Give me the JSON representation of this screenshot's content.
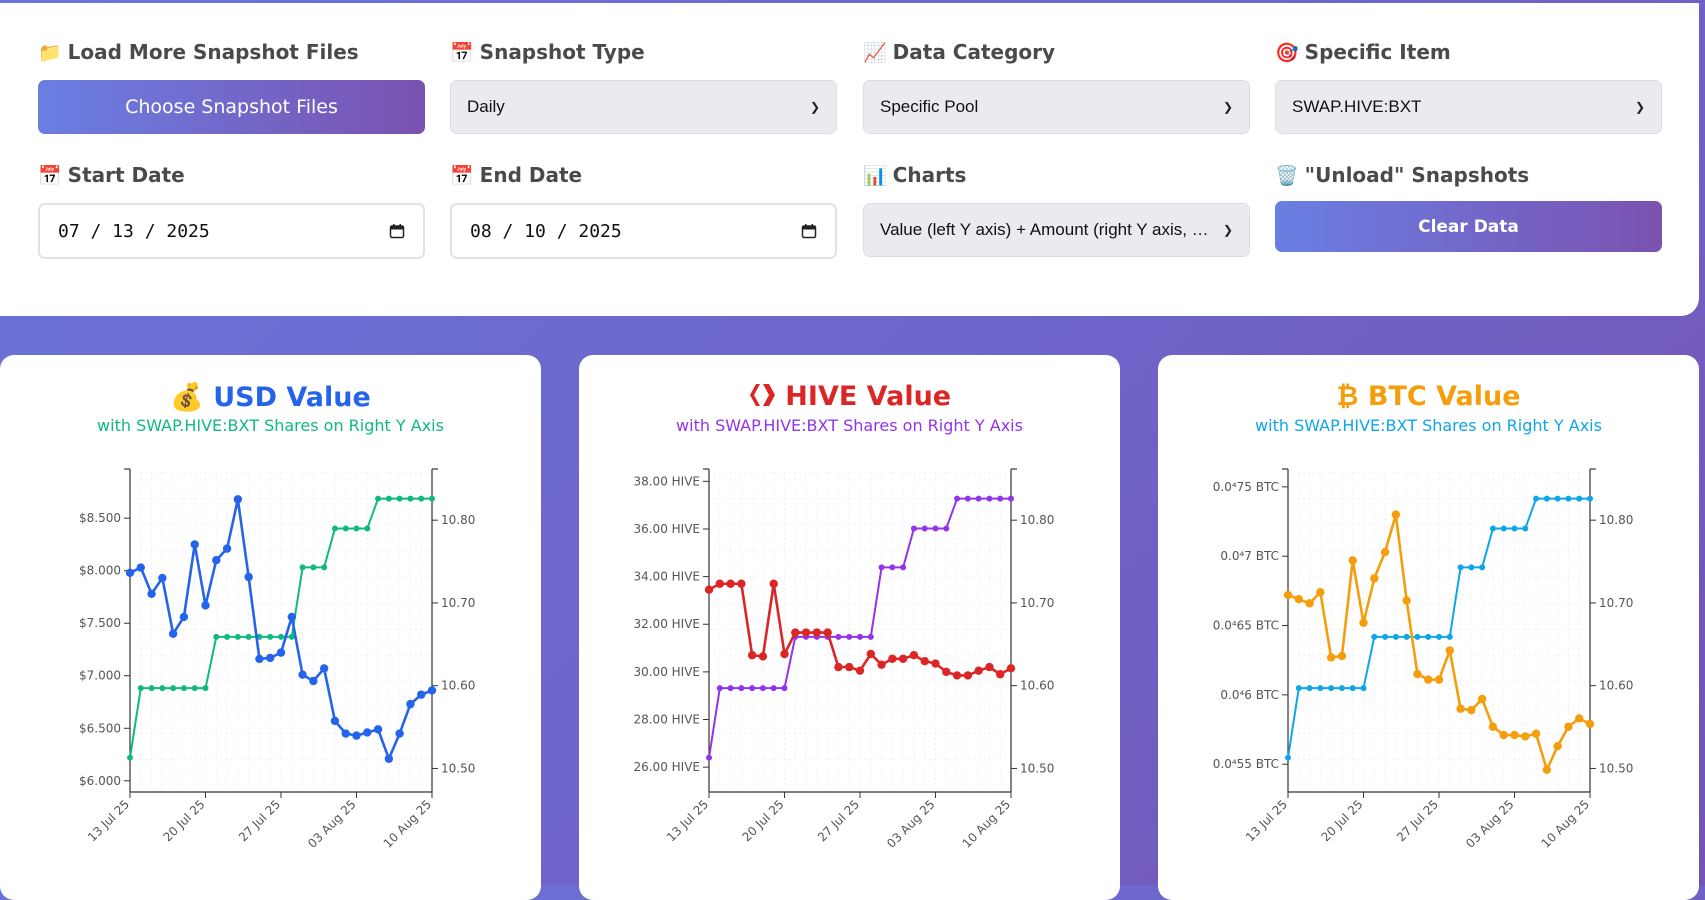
{
  "controls": {
    "load_files": {
      "icon": "📁",
      "label": "Load More Snapshot Files",
      "button": "Choose Snapshot Files"
    },
    "snapshot_type": {
      "icon": "📅",
      "label": "Snapshot Type",
      "value": "Daily"
    },
    "data_category": {
      "icon": "📈",
      "label": "Data Category",
      "value": "Specific Pool"
    },
    "specific_item": {
      "icon": "🎯",
      "label": "Specific Item",
      "value": "SWAP.HIVE:BXT"
    },
    "start_date": {
      "icon": "📅",
      "label": "Start Date",
      "value": "07 / 13 / 2025"
    },
    "end_date": {
      "icon": "📅",
      "label": "End Date",
      "value": "08 / 10 / 2025"
    },
    "charts": {
      "icon": "📊",
      "label": "Charts",
      "value": "Value (left Y axis) + Amount (right Y axis, …"
    },
    "unload": {
      "icon": "🗑️",
      "label": "\"Unload\" Snapshots",
      "button": "Clear Data"
    }
  },
  "cards": [
    {
      "icon": "💰",
      "title": "USD Value",
      "subtitle": "with SWAP.HIVE:BXT Shares on Right Y Axis",
      "title_color": "#2563eb",
      "sub_color": "#10b981"
    },
    {
      "icon": "",
      "title": "HIVE Value",
      "subtitle": "with SWAP.HIVE:BXT Shares on Right Y Axis",
      "title_color": "#dc2626",
      "sub_color": "#9333ea"
    },
    {
      "icon": "₿",
      "title": "BTC Value",
      "subtitle": "with SWAP.HIVE:BXT Shares on Right Y Axis",
      "title_color": "#f59e0b",
      "sub_color": "#0ea5e9"
    }
  ],
  "chart_data": [
    {
      "type": "line",
      "title": "USD Value",
      "x_ticks": [
        "13 Jul 25",
        "20 Jul 25",
        "27 Jul 25",
        "03 Aug 25",
        "10 Aug 25"
      ],
      "y_left_ticks": [
        "$6.000",
        "$6.500",
        "$7.000",
        "$7.500",
        "$8.000",
        "$8.500"
      ],
      "y_left_range": [
        5.96,
        8.93
      ],
      "y_right_ticks": [
        "10.50",
        "10.60",
        "10.70",
        "10.80"
      ],
      "y_right_range": [
        10.48,
        10.857
      ],
      "series": [
        {
          "axis": "left",
          "color": "#2563eb",
          "values": [
            7.98,
            8.03,
            7.78,
            7.93,
            7.4,
            7.56,
            8.25,
            7.67,
            8.1,
            8.21,
            8.68,
            7.94,
            7.16,
            7.17,
            7.22,
            7.56,
            7.01,
            6.95,
            7.07,
            6.57,
            6.45,
            6.43,
            6.46,
            6.49,
            6.21,
            6.45,
            6.73,
            6.82,
            6.86
          ]
        },
        {
          "axis": "right",
          "color": "#10b981",
          "values": [
            10.513,
            10.597,
            10.597,
            10.597,
            10.597,
            10.597,
            10.597,
            10.597,
            10.659,
            10.659,
            10.659,
            10.659,
            10.659,
            10.659,
            10.659,
            10.659,
            10.743,
            10.743,
            10.743,
            10.79,
            10.79,
            10.79,
            10.79,
            10.826,
            10.826,
            10.826,
            10.826,
            10.826,
            10.826
          ]
        }
      ]
    },
    {
      "type": "line",
      "title": "HIVE Value",
      "x_ticks": [
        "13 Jul 25",
        "20 Jul 25",
        "27 Jul 25",
        "03 Aug 25",
        "10 Aug 25"
      ],
      "y_left_ticks": [
        "26.00 HIVE",
        "28.00 HIVE",
        "30.00 HIVE",
        "32.00 HIVE",
        "34.00 HIVE",
        "36.00 HIVE",
        "38.00 HIVE"
      ],
      "y_left_range": [
        25.25,
        38.35
      ],
      "y_right_ticks": [
        "10.50",
        "10.60",
        "10.70",
        "10.80"
      ],
      "y_right_range": [
        10.48,
        10.857
      ],
      "series": [
        {
          "axis": "left",
          "color": "#dc2626",
          "values": [
            33.45,
            33.7,
            33.7,
            33.7,
            30.7,
            30.65,
            33.7,
            30.75,
            31.65,
            31.65,
            31.65,
            31.65,
            30.2,
            30.2,
            30.05,
            30.75,
            30.3,
            30.55,
            30.55,
            30.7,
            30.45,
            30.35,
            30.0,
            29.85,
            29.85,
            30.05,
            30.2,
            29.9,
            30.15
          ]
        },
        {
          "axis": "right",
          "color": "#9333ea",
          "values": [
            10.513,
            10.597,
            10.597,
            10.597,
            10.597,
            10.597,
            10.597,
            10.597,
            10.659,
            10.659,
            10.659,
            10.659,
            10.659,
            10.659,
            10.659,
            10.659,
            10.743,
            10.743,
            10.743,
            10.79,
            10.79,
            10.79,
            10.79,
            10.826,
            10.826,
            10.826,
            10.826,
            10.826,
            10.826
          ]
        }
      ]
    },
    {
      "type": "line",
      "title": "BTC Value",
      "x_ticks": [
        "13 Jul 25",
        "20 Jul 25",
        "27 Jul 25",
        "03 Aug 25",
        "10 Aug 25"
      ],
      "y_left_ticks": [
        "0.0⁴55 BTC",
        "0.0⁴6 BTC",
        "0.0⁴65 BTC",
        "0.0⁴7 BTC",
        "0.0⁴75 BTC"
      ],
      "y_left_range": [
        5.35e-06,
        7.6e-06
      ],
      "y_right_ticks": [
        "10.50",
        "10.60",
        "10.70",
        "10.80"
      ],
      "y_right_range": [
        10.48,
        10.857
      ],
      "series": [
        {
          "axis": "left",
          "color": "#f59e0b",
          "values": [
            6.72e-06,
            6.69e-06,
            6.66e-06,
            6.74e-06,
            6.27e-06,
            6.28e-06,
            6.97e-06,
            6.52e-06,
            6.84e-06,
            7.03e-06,
            7.3e-06,
            6.68e-06,
            6.15e-06,
            6.11e-06,
            6.11e-06,
            6.32e-06,
            5.9e-06,
            5.89e-06,
            5.97e-06,
            5.77e-06,
            5.71e-06,
            5.71e-06,
            5.7e-06,
            5.72e-06,
            5.46e-06,
            5.63e-06,
            5.77e-06,
            5.83e-06,
            5.79e-06
          ]
        },
        {
          "axis": "right",
          "color": "#0ea5e9",
          "values": [
            10.513,
            10.597,
            10.597,
            10.597,
            10.597,
            10.597,
            10.597,
            10.597,
            10.659,
            10.659,
            10.659,
            10.659,
            10.659,
            10.659,
            10.659,
            10.659,
            10.743,
            10.743,
            10.743,
            10.79,
            10.79,
            10.79,
            10.79,
            10.826,
            10.826,
            10.826,
            10.826,
            10.826,
            10.826
          ]
        }
      ]
    }
  ]
}
